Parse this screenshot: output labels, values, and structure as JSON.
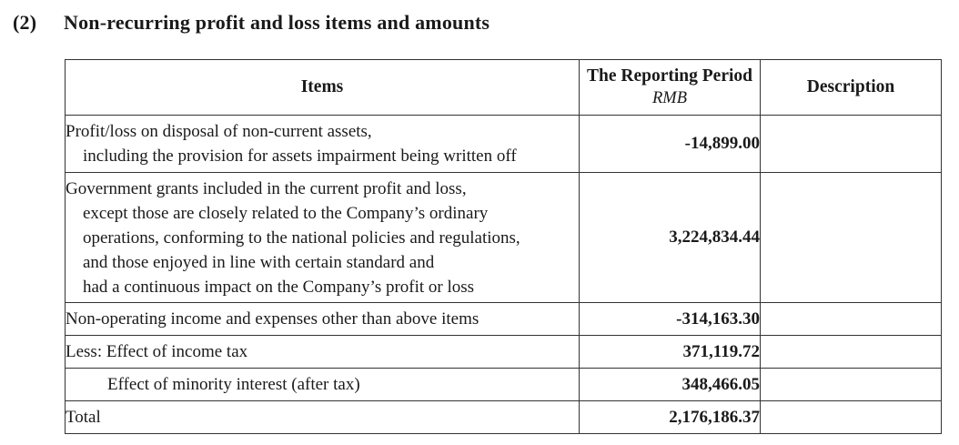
{
  "heading": {
    "number": "(2)",
    "title": "Non-recurring profit and loss items and amounts"
  },
  "table": {
    "headers": {
      "items": "Items",
      "period": "The Reporting Period",
      "period_unit": "RMB",
      "description": "Description"
    },
    "rows": [
      {
        "lines": [
          "Profit/loss on disposal of non-current assets,",
          "including the provision for assets impairment being written off"
        ],
        "amount": "-14,899.00",
        "description": ""
      },
      {
        "lines": [
          "Government grants included in the current profit and loss,",
          "except those are closely related to the Company’s ordinary",
          "operations, conforming to the national policies and regulations,",
          "and those enjoyed in line with certain standard and",
          "had a continuous impact on the Company’s profit or loss"
        ],
        "amount": "3,224,834.44",
        "description": ""
      },
      {
        "lines": [
          "Non-operating income and expenses other than above items"
        ],
        "amount": "-314,163.30",
        "description": ""
      },
      {
        "lines": [
          "Less: Effect of income tax"
        ],
        "amount": "371,119.72",
        "description": ""
      },
      {
        "lines": [
          "Effect of minority interest (after tax)"
        ],
        "amount": "348,466.05",
        "description": ""
      },
      {
        "lines": [
          "Total"
        ],
        "amount": "2,176,186.37",
        "description": ""
      }
    ]
  }
}
